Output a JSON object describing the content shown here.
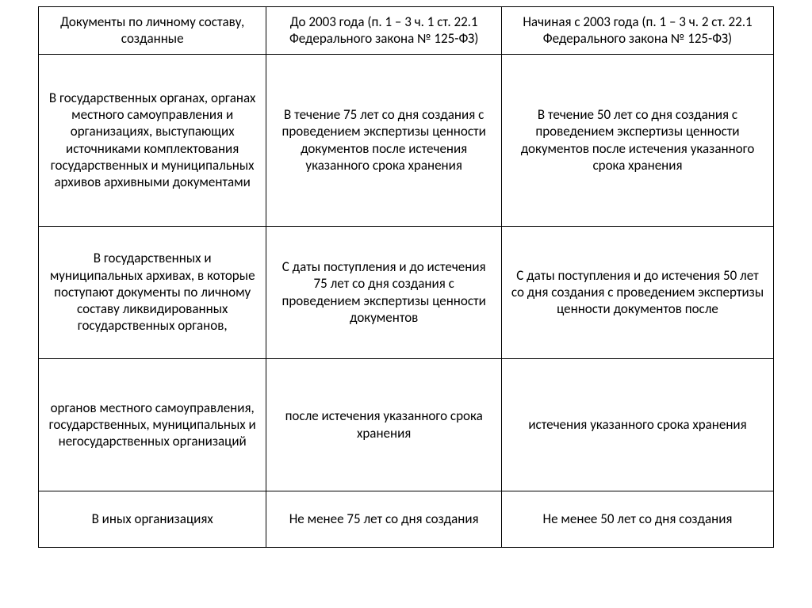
{
  "table": {
    "type": "table",
    "columns": [
      "Документы по личному составу, созданные",
      "До 2003 года (п. 1 – 3 ч. 1 ст. 22.1 Федерального закона № 125-ФЗ)",
      "Начиная с 2003 года (п. 1 – 3 ч. 2 ст. 22.1 Федерального закона № 125-ФЗ)"
    ],
    "rows": [
      [
        "В государственных органах, органах местного самоуправления и организациях, выступающих источниками комплектования государственных и муниципальных архивов архивными документами",
        "В течение 75 лет со дня создания с проведением экспертизы ценности документов после истечения указанного срока хранения",
        "В течение 50 лет со дня создания с проведением экспертизы ценности документов после истечения указанного срока хранения"
      ],
      [
        "В государственных и муниципальных архивах, в которые поступают документы по личному составу ликвидированных государственных органов,",
        "С даты поступления и до истечения 75 лет со дня создания с проведением экспертизы ценности документов",
        "С даты поступления и до истечения 50 лет со дня создания с проведением экспертизы ценности документов после"
      ],
      [
        "органов местного самоуправления, государственных, муниципальных и негосударственных организаций",
        "после истечения указанного срока хранения",
        "истечения указанного срока хранения"
      ],
      [
        "В иных организациях",
        "Не менее 75 лет со дня создания",
        "Не менее 50 лет со дня создания"
      ]
    ],
    "border_color": "#000000",
    "background_color": "#ffffff",
    "text_color": "#000000",
    "font_size_pt": 13,
    "column_widths_pct": [
      31,
      32,
      37
    ],
    "text_align": "center"
  }
}
